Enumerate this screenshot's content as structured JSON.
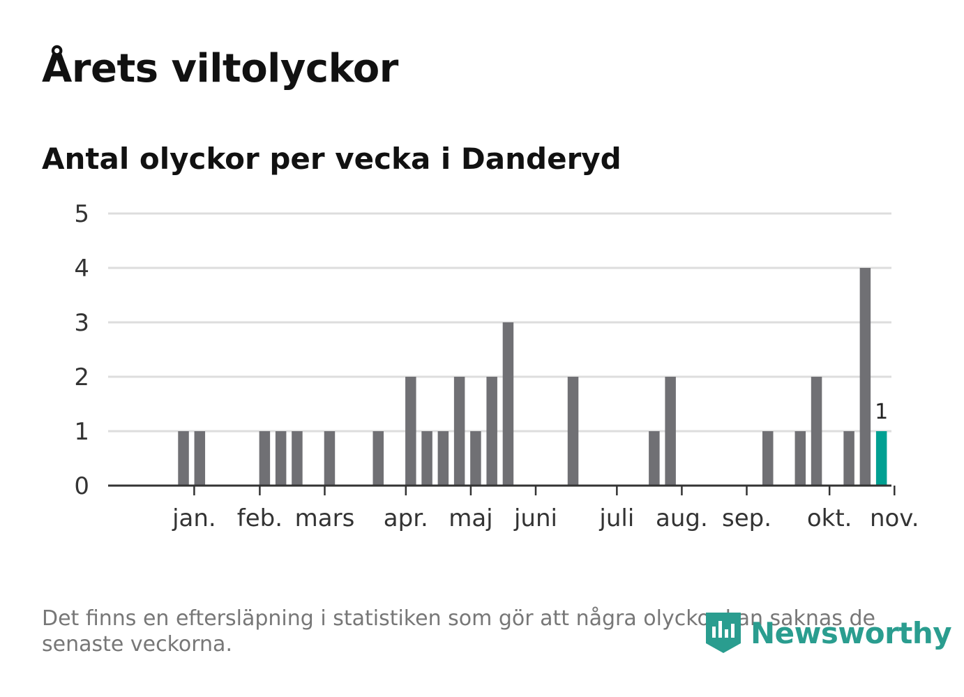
{
  "title": "Årets viltolyckor",
  "subtitle": "Antal olyckor per vecka i Danderyd",
  "footnote": "Det finns en eftersläpning i statistiken som gör att några olyckor kan saknas de senaste veckorna.",
  "brand": {
    "name": "Newsworthy",
    "icon": "newsworthy-logo-icon"
  },
  "colors": {
    "bar": "#707074",
    "highlight": "#00a092",
    "grid": "#dddddd",
    "axis": "#333333",
    "brand": "#2a9d8f"
  },
  "chart_data": {
    "type": "bar",
    "title": "Antal olyckor per vecka i Danderyd",
    "xlabel": "",
    "ylabel": "",
    "ylim": [
      0,
      5
    ],
    "yticks": [
      0,
      1,
      2,
      3,
      4,
      5
    ],
    "grid": true,
    "x": [
      1,
      2,
      3,
      4,
      5,
      6,
      7,
      8,
      9,
      10,
      11,
      12,
      13,
      14,
      15,
      16,
      17,
      18,
      19,
      20,
      21,
      22,
      23,
      24,
      25,
      26,
      27,
      28,
      29,
      30,
      31,
      32,
      33,
      34,
      35,
      36,
      37,
      38,
      39,
      40,
      41,
      42,
      43,
      44,
      45,
      46
    ],
    "values": [
      0,
      0,
      1,
      1,
      0,
      0,
      0,
      1,
      1,
      1,
      0,
      1,
      0,
      0,
      1,
      0,
      2,
      1,
      1,
      2,
      1,
      2,
      3,
      0,
      0,
      0,
      2,
      0,
      0,
      0,
      0,
      1,
      2,
      0,
      0,
      0,
      0,
      0,
      1,
      0,
      1,
      2,
      0,
      1,
      4,
      1
    ],
    "highlight_week": 46,
    "highlight_label": "1",
    "month_ticks": [
      {
        "label": "jan.",
        "week": 3.66
      },
      {
        "label": "feb.",
        "week": 7.7
      },
      {
        "label": "mars",
        "week": 11.7
      },
      {
        "label": "apr.",
        "week": 16.7
      },
      {
        "label": "maj",
        "week": 20.7
      },
      {
        "label": "juni",
        "week": 24.7
      },
      {
        "label": "juli",
        "week": 29.7
      },
      {
        "label": "aug.",
        "week": 33.7
      },
      {
        "label": "sep.",
        "week": 37.7
      },
      {
        "label": "okt.",
        "week": 42.8
      },
      {
        "label": "nov.",
        "week": 46.8
      }
    ]
  }
}
